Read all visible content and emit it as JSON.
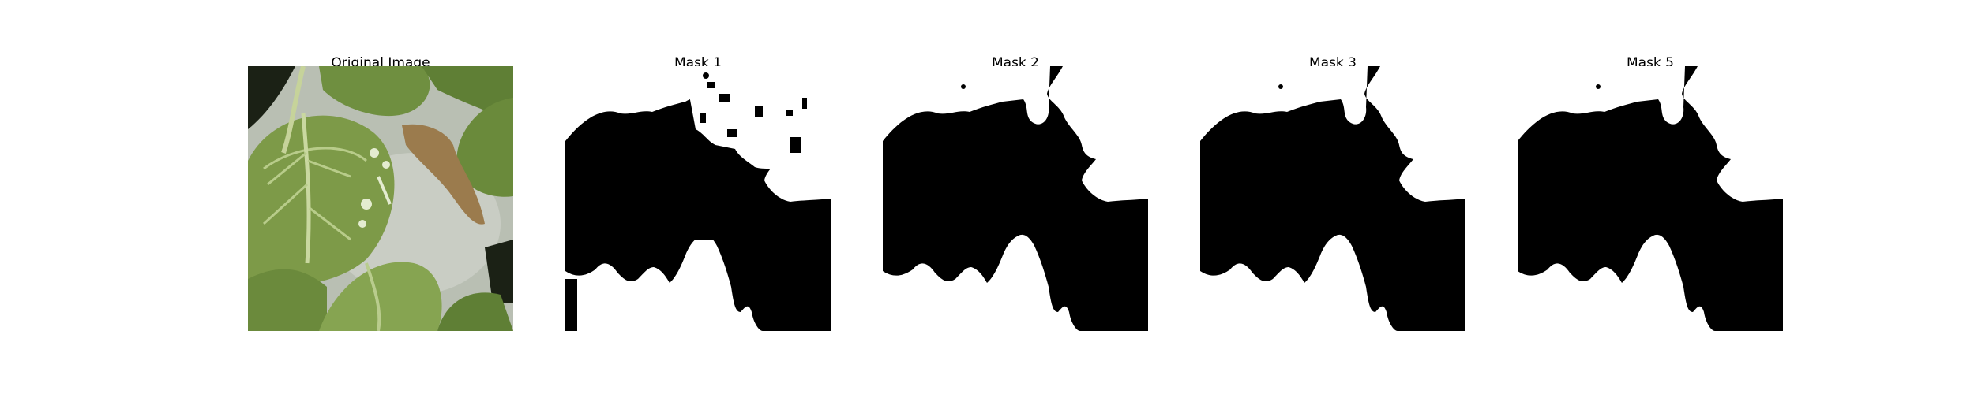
{
  "figure": {
    "panels": [
      {
        "title": "Original Image",
        "kind": "photo",
        "subject": "green leaves"
      },
      {
        "title": "Mask 1",
        "kind": "binary-mask"
      },
      {
        "title": "Mask 2",
        "kind": "binary-mask"
      },
      {
        "title": "Mask 3",
        "kind": "binary-mask"
      },
      {
        "title": "Mask 5",
        "kind": "binary-mask"
      }
    ],
    "colors": {
      "background": "#ffffff",
      "mask_foreground": "#ffffff",
      "mask_background": "#000000",
      "leaf_main": "#6e8f3f",
      "leaf_light": "#9fb86a",
      "backdrop_gray": "#b9bfb3",
      "dark_shadow": "#1b2115",
      "dried_leaf": "#9b7b4d"
    }
  }
}
